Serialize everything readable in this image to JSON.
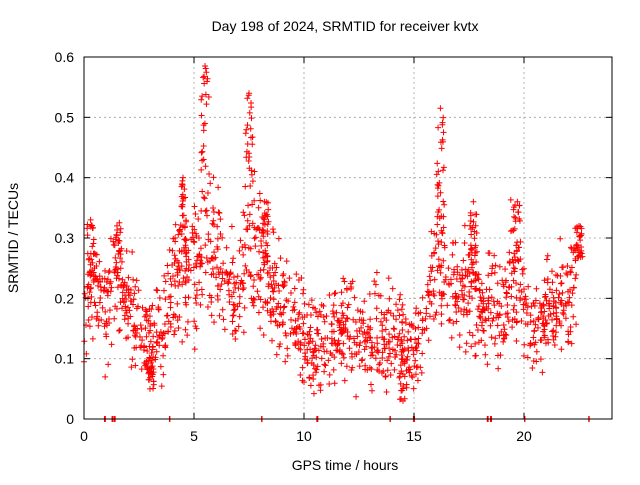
{
  "chart_data": {
    "type": "scatter",
    "title": "Day 198 of 2024, SRMTID for receiver kvtx",
    "xlabel": "GPS time / hours",
    "ylabel": "SRMTID / TECUs",
    "xlim": [
      0,
      24
    ],
    "ylim": [
      0,
      0.6
    ],
    "x_ticks": [
      0,
      5,
      10,
      15,
      20
    ],
    "x_tick_labels": [
      "0",
      "5",
      "10",
      "15",
      "20"
    ],
    "y_ticks": [
      0,
      0.1,
      0.2,
      0.3,
      0.4,
      0.5,
      0.6
    ],
    "y_tick_labels": [
      "0",
      "0.1",
      "0.2",
      "0.3",
      "0.4",
      "0.5",
      "0.6"
    ],
    "grid": true,
    "marker": "plus",
    "color": "#ff0000",
    "series": [
      {
        "name": "SRMTID",
        "envelope": [
          {
            "x": 0.0,
            "y": 0.21
          },
          {
            "x": 0.5,
            "y": 0.22
          },
          {
            "x": 1.0,
            "y": 0.17
          },
          {
            "x": 1.5,
            "y": 0.24
          },
          {
            "x": 2.0,
            "y": 0.2
          },
          {
            "x": 2.5,
            "y": 0.15
          },
          {
            "x": 3.0,
            "y": 0.12
          },
          {
            "x": 3.5,
            "y": 0.13
          },
          {
            "x": 4.0,
            "y": 0.2
          },
          {
            "x": 4.5,
            "y": 0.27
          },
          {
            "x": 5.0,
            "y": 0.22
          },
          {
            "x": 5.5,
            "y": 0.3
          },
          {
            "x": 6.0,
            "y": 0.28
          },
          {
            "x": 6.5,
            "y": 0.22
          },
          {
            "x": 7.0,
            "y": 0.2
          },
          {
            "x": 7.5,
            "y": 0.3
          },
          {
            "x": 8.0,
            "y": 0.27
          },
          {
            "x": 8.5,
            "y": 0.22
          },
          {
            "x": 9.0,
            "y": 0.2
          },
          {
            "x": 9.5,
            "y": 0.16
          },
          {
            "x": 10.0,
            "y": 0.13
          },
          {
            "x": 10.5,
            "y": 0.11
          },
          {
            "x": 11.0,
            "y": 0.12
          },
          {
            "x": 11.5,
            "y": 0.14
          },
          {
            "x": 12.0,
            "y": 0.15
          },
          {
            "x": 12.5,
            "y": 0.14
          },
          {
            "x": 13.0,
            "y": 0.13
          },
          {
            "x": 13.5,
            "y": 0.14
          },
          {
            "x": 14.0,
            "y": 0.14
          },
          {
            "x": 14.5,
            "y": 0.13
          },
          {
            "x": 15.0,
            "y": 0.13
          },
          {
            "x": 15.5,
            "y": 0.14
          },
          {
            "x": 16.0,
            "y": 0.3
          },
          {
            "x": 16.5,
            "y": 0.22
          },
          {
            "x": 17.0,
            "y": 0.2
          },
          {
            "x": 17.5,
            "y": 0.22
          },
          {
            "x": 18.0,
            "y": 0.16
          },
          {
            "x": 18.5,
            "y": 0.2
          },
          {
            "x": 19.0,
            "y": 0.18
          },
          {
            "x": 19.5,
            "y": 0.25
          },
          {
            "x": 20.0,
            "y": 0.17
          },
          {
            "x": 20.5,
            "y": 0.15
          },
          {
            "x": 21.0,
            "y": 0.17
          },
          {
            "x": 21.5,
            "y": 0.19
          },
          {
            "x": 22.0,
            "y": 0.2
          },
          {
            "x": 22.5,
            "y": 0.25
          }
        ],
        "spikes": [
          {
            "x": 5.5,
            "y": 0.585
          },
          {
            "x": 7.5,
            "y": 0.54
          },
          {
            "x": 16.2,
            "y": 0.515
          },
          {
            "x": 4.5,
            "y": 0.4
          },
          {
            "x": 19.7,
            "y": 0.36
          },
          {
            "x": 17.7,
            "y": 0.36
          },
          {
            "x": 0.3,
            "y": 0.33
          },
          {
            "x": 8.2,
            "y": 0.36
          },
          {
            "x": 1.5,
            "y": 0.32
          },
          {
            "x": 22.5,
            "y": 0.32
          },
          {
            "x": 3.0,
            "y": 0.05
          },
          {
            "x": 14.5,
            "y": 0.03
          }
        ],
        "zero_points_x": [
          0.95,
          1.3,
          1.4,
          3.9,
          8.1,
          10.6,
          13.9,
          15.0,
          18.35,
          18.5,
          20.05,
          22.95
        ]
      }
    ]
  }
}
